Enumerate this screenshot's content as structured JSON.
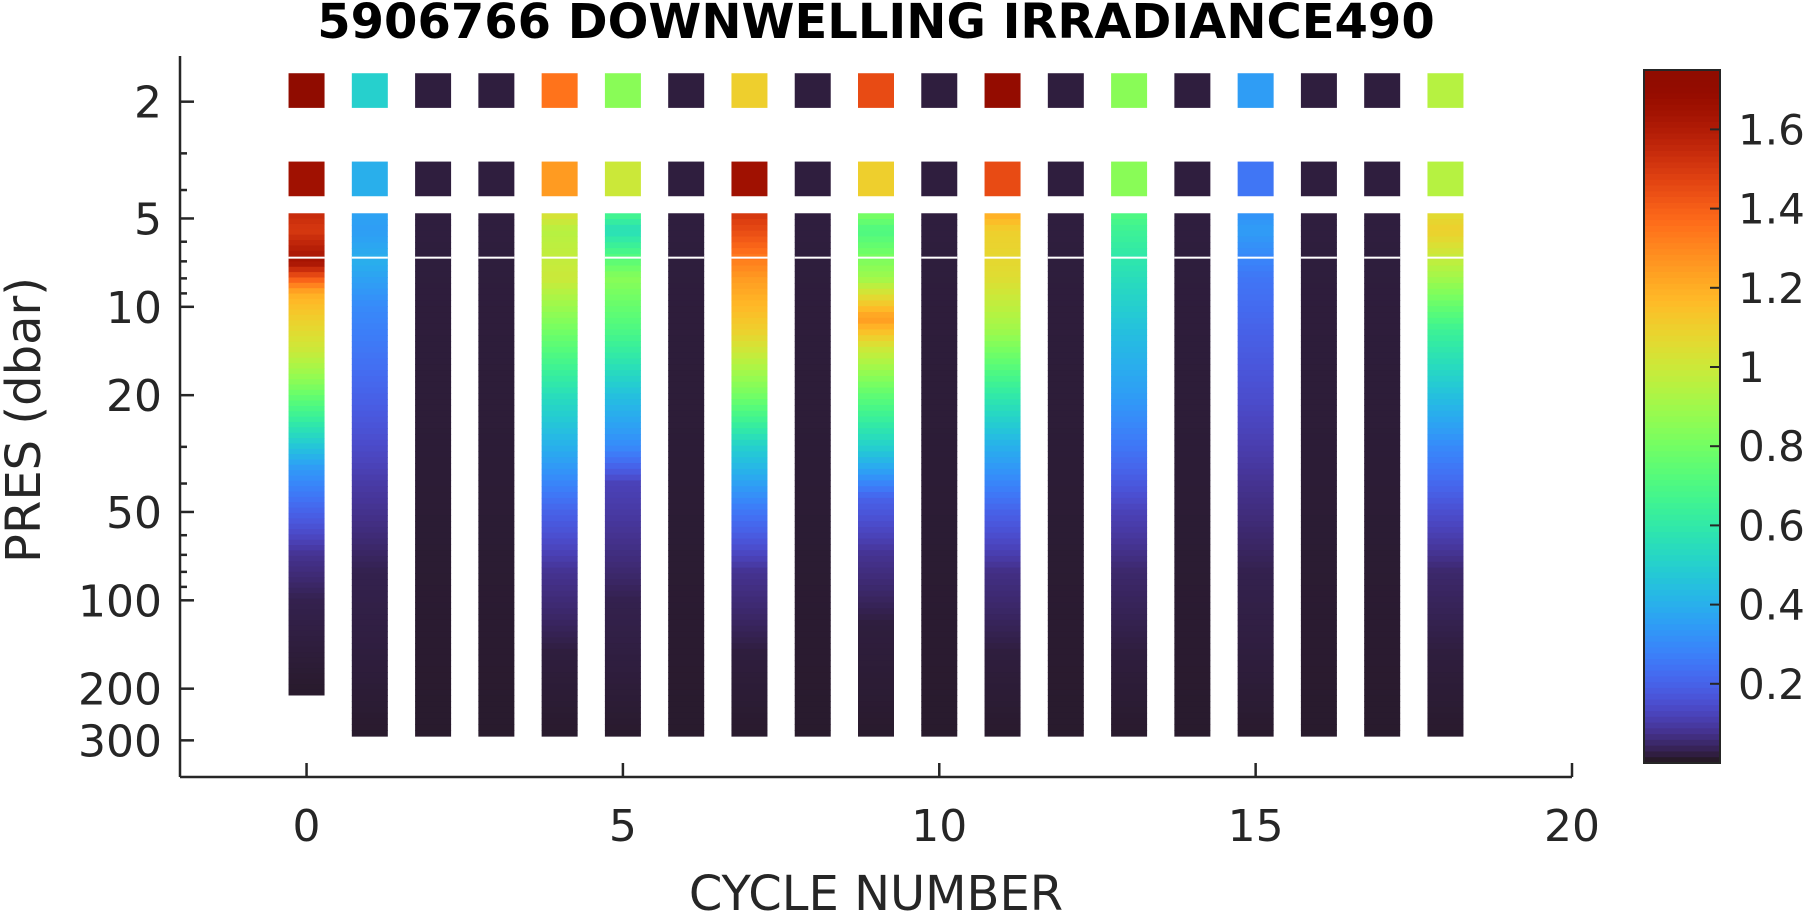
{
  "chart_data": {
    "type": "heatmap",
    "title": "5906766  DOWNWELLING IRRADIANCE490",
    "xlabel": "CYCLE NUMBER",
    "ylabel": "PRES (dbar)",
    "xlim": [
      -2,
      20
    ],
    "ylim": [
      1.5,
      350
    ],
    "y_scale": "log",
    "x_ticks": [
      "0",
      "5",
      "10",
      "15",
      "20"
    ],
    "y_ticks": [
      "2",
      "5",
      "10",
      "20",
      "50",
      "100",
      "200",
      "300"
    ],
    "colorbar": {
      "colormap": "turbo",
      "range": [
        0,
        1.75
      ],
      "ticks": [
        "0.2",
        "0.4",
        "0.6",
        "0.8",
        "1",
        "1.2",
        "1.4",
        "1.6"
      ]
    },
    "profiles": [
      {
        "cycle": 0,
        "max_pres": 210,
        "points": [
          [
            1.8,
            1.75
          ],
          [
            3.5,
            1.65
          ],
          [
            5.5,
            1.5
          ],
          [
            7,
            1.65
          ],
          [
            9,
            1.2
          ],
          [
            11,
            1.1
          ],
          [
            14,
            1.0
          ],
          [
            18,
            0.85
          ],
          [
            25,
            0.6
          ],
          [
            35,
            0.35
          ],
          [
            50,
            0.2
          ],
          [
            70,
            0.08
          ],
          [
            100,
            0.03
          ],
          [
            200,
            0.01
          ]
        ]
      },
      {
        "cycle": 1,
        "max_pres": 290,
        "points": [
          [
            1.8,
            0.5
          ],
          [
            3.5,
            0.4
          ],
          [
            5.5,
            0.35
          ],
          [
            7,
            0.4
          ],
          [
            10,
            0.3
          ],
          [
            20,
            0.2
          ],
          [
            40,
            0.1
          ],
          [
            80,
            0.03
          ],
          [
            290,
            0.01
          ]
        ]
      },
      {
        "cycle": 2,
        "max_pres": 290,
        "points": [
          [
            1.8,
            0.02
          ],
          [
            3.5,
            0.02
          ],
          [
            5.5,
            0.02
          ],
          [
            290,
            0.01
          ]
        ]
      },
      {
        "cycle": 3,
        "max_pres": 290,
        "points": [
          [
            1.8,
            0.02
          ],
          [
            3.5,
            0.02
          ],
          [
            5.5,
            0.02
          ],
          [
            290,
            0.01
          ]
        ]
      },
      {
        "cycle": 4,
        "max_pres": 290,
        "points": [
          [
            1.8,
            1.35
          ],
          [
            3.5,
            1.25
          ],
          [
            5.5,
            0.95
          ],
          [
            8,
            1.0
          ],
          [
            12,
            0.8
          ],
          [
            20,
            0.55
          ],
          [
            30,
            0.4
          ],
          [
            50,
            0.2
          ],
          [
            80,
            0.08
          ],
          [
            150,
            0.02
          ],
          [
            290,
            0.01
          ]
        ]
      },
      {
        "cycle": 5,
        "max_pres": 290,
        "points": [
          [
            1.8,
            0.85
          ],
          [
            3.5,
            1.0
          ],
          [
            5.5,
            0.55
          ],
          [
            8,
            0.85
          ],
          [
            12,
            0.7
          ],
          [
            20,
            0.45
          ],
          [
            30,
            0.3
          ],
          [
            40,
            0.12
          ],
          [
            60,
            0.08
          ],
          [
            100,
            0.03
          ],
          [
            290,
            0.01
          ]
        ]
      },
      {
        "cycle": 6,
        "max_pres": 290,
        "points": [
          [
            1.8,
            0.02
          ],
          [
            3.5,
            0.02
          ],
          [
            5.5,
            0.02
          ],
          [
            290,
            0.01
          ]
        ]
      },
      {
        "cycle": 7,
        "max_pres": 290,
        "points": [
          [
            1.8,
            1.1
          ],
          [
            3.5,
            1.65
          ],
          [
            5.5,
            1.45
          ],
          [
            8,
            1.25
          ],
          [
            12,
            1.1
          ],
          [
            20,
            0.8
          ],
          [
            30,
            0.5
          ],
          [
            50,
            0.25
          ],
          [
            80,
            0.08
          ],
          [
            150,
            0.02
          ],
          [
            290,
            0.01
          ]
        ]
      },
      {
        "cycle": 8,
        "max_pres": 290,
        "points": [
          [
            1.8,
            0.02
          ],
          [
            3.5,
            0.02
          ],
          [
            5.5,
            0.02
          ],
          [
            290,
            0.01
          ]
        ]
      },
      {
        "cycle": 9,
        "max_pres": 290,
        "points": [
          [
            1.8,
            1.45
          ],
          [
            3.5,
            1.1
          ],
          [
            5.5,
            0.7
          ],
          [
            8,
            0.9
          ],
          [
            11,
            1.25
          ],
          [
            14,
            1.0
          ],
          [
            20,
            0.75
          ],
          [
            30,
            0.5
          ],
          [
            45,
            0.2
          ],
          [
            70,
            0.08
          ],
          [
            120,
            0.02
          ],
          [
            290,
            0.01
          ]
        ]
      },
      {
        "cycle": 10,
        "max_pres": 290,
        "points": [
          [
            1.8,
            0.02
          ],
          [
            3.5,
            0.02
          ],
          [
            5.5,
            0.02
          ],
          [
            290,
            0.01
          ]
        ]
      },
      {
        "cycle": 11,
        "max_pres": 290,
        "points": [
          [
            1.8,
            1.7
          ],
          [
            3.5,
            1.45
          ],
          [
            5.5,
            1.1
          ],
          [
            8,
            1.05
          ],
          [
            12,
            0.9
          ],
          [
            20,
            0.6
          ],
          [
            30,
            0.4
          ],
          [
            50,
            0.2
          ],
          [
            80,
            0.07
          ],
          [
            150,
            0.02
          ],
          [
            290,
            0.01
          ]
        ]
      },
      {
        "cycle": 12,
        "max_pres": 290,
        "points": [
          [
            1.8,
            0.02
          ],
          [
            3.5,
            0.02
          ],
          [
            5.5,
            0.02
          ],
          [
            290,
            0.01
          ]
        ]
      },
      {
        "cycle": 13,
        "max_pres": 290,
        "points": [
          [
            1.8,
            0.85
          ],
          [
            3.5,
            0.85
          ],
          [
            5.5,
            0.65
          ],
          [
            8,
            0.55
          ],
          [
            12,
            0.45
          ],
          [
            20,
            0.35
          ],
          [
            30,
            0.25
          ],
          [
            50,
            0.12
          ],
          [
            80,
            0.05
          ],
          [
            150,
            0.02
          ],
          [
            290,
            0.01
          ]
        ]
      },
      {
        "cycle": 14,
        "max_pres": 290,
        "points": [
          [
            1.8,
            0.02
          ],
          [
            3.5,
            0.02
          ],
          [
            5.5,
            0.02
          ],
          [
            290,
            0.01
          ]
        ]
      },
      {
        "cycle": 15,
        "max_pres": 290,
        "points": [
          [
            1.8,
            0.35
          ],
          [
            3.5,
            0.25
          ],
          [
            5.5,
            0.35
          ],
          [
            8,
            0.25
          ],
          [
            12,
            0.2
          ],
          [
            20,
            0.15
          ],
          [
            40,
            0.08
          ],
          [
            80,
            0.03
          ],
          [
            290,
            0.01
          ]
        ]
      },
      {
        "cycle": 16,
        "max_pres": 290,
        "points": [
          [
            1.8,
            0.02
          ],
          [
            3.5,
            0.02
          ],
          [
            5.5,
            0.02
          ],
          [
            290,
            0.01
          ]
        ]
      },
      {
        "cycle": 17,
        "max_pres": 290,
        "points": [
          [
            1.8,
            0.02
          ],
          [
            3.5,
            0.02
          ],
          [
            5.5,
            0.02
          ],
          [
            290,
            0.01
          ]
        ]
      },
      {
        "cycle": 18,
        "max_pres": 290,
        "points": [
          [
            1.8,
            0.95
          ],
          [
            3.5,
            0.95
          ],
          [
            5.5,
            1.1
          ],
          [
            8,
            0.9
          ],
          [
            12,
            0.65
          ],
          [
            20,
            0.45
          ],
          [
            30,
            0.3
          ],
          [
            50,
            0.15
          ],
          [
            80,
            0.05
          ],
          [
            150,
            0.02
          ],
          [
            290,
            0.01
          ]
        ]
      }
    ]
  }
}
